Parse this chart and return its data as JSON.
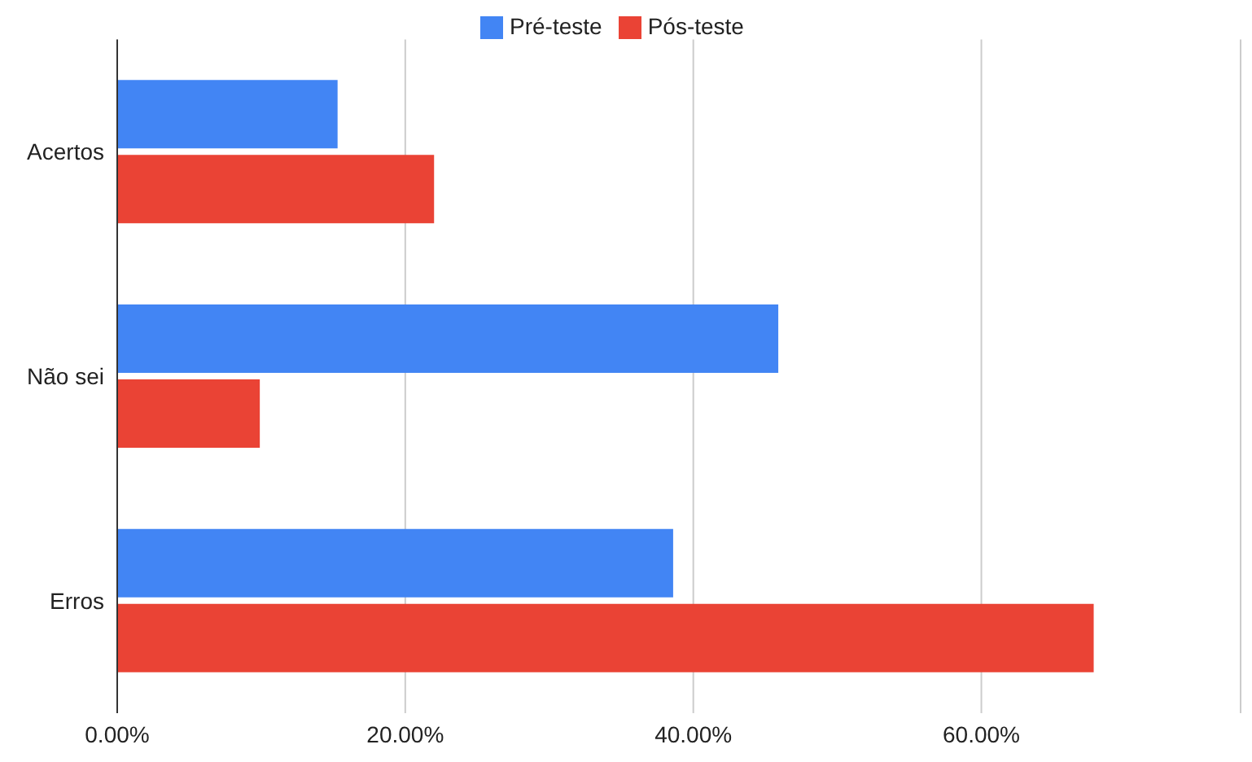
{
  "chart_data": {
    "type": "bar",
    "orientation": "horizontal",
    "categories": [
      "Acertos",
      "Não sei",
      "Erros"
    ],
    "series": [
      {
        "name": "Pré-teste",
        "color": "#4285f4",
        "values": [
          15.3,
          45.9,
          38.6
        ]
      },
      {
        "name": "Pós-teste",
        "color": "#ea4335",
        "values": [
          22,
          9.9,
          67.8
        ]
      }
    ],
    "xlim": [
      0,
      78
    ],
    "xticks": [
      {
        "value": 0,
        "label": "0.00%"
      },
      {
        "value": 20,
        "label": "20.00%"
      },
      {
        "value": 40,
        "label": "40.00%"
      },
      {
        "value": 60,
        "label": "60.00%"
      }
    ],
    "grid": "x",
    "legend": "top"
  }
}
